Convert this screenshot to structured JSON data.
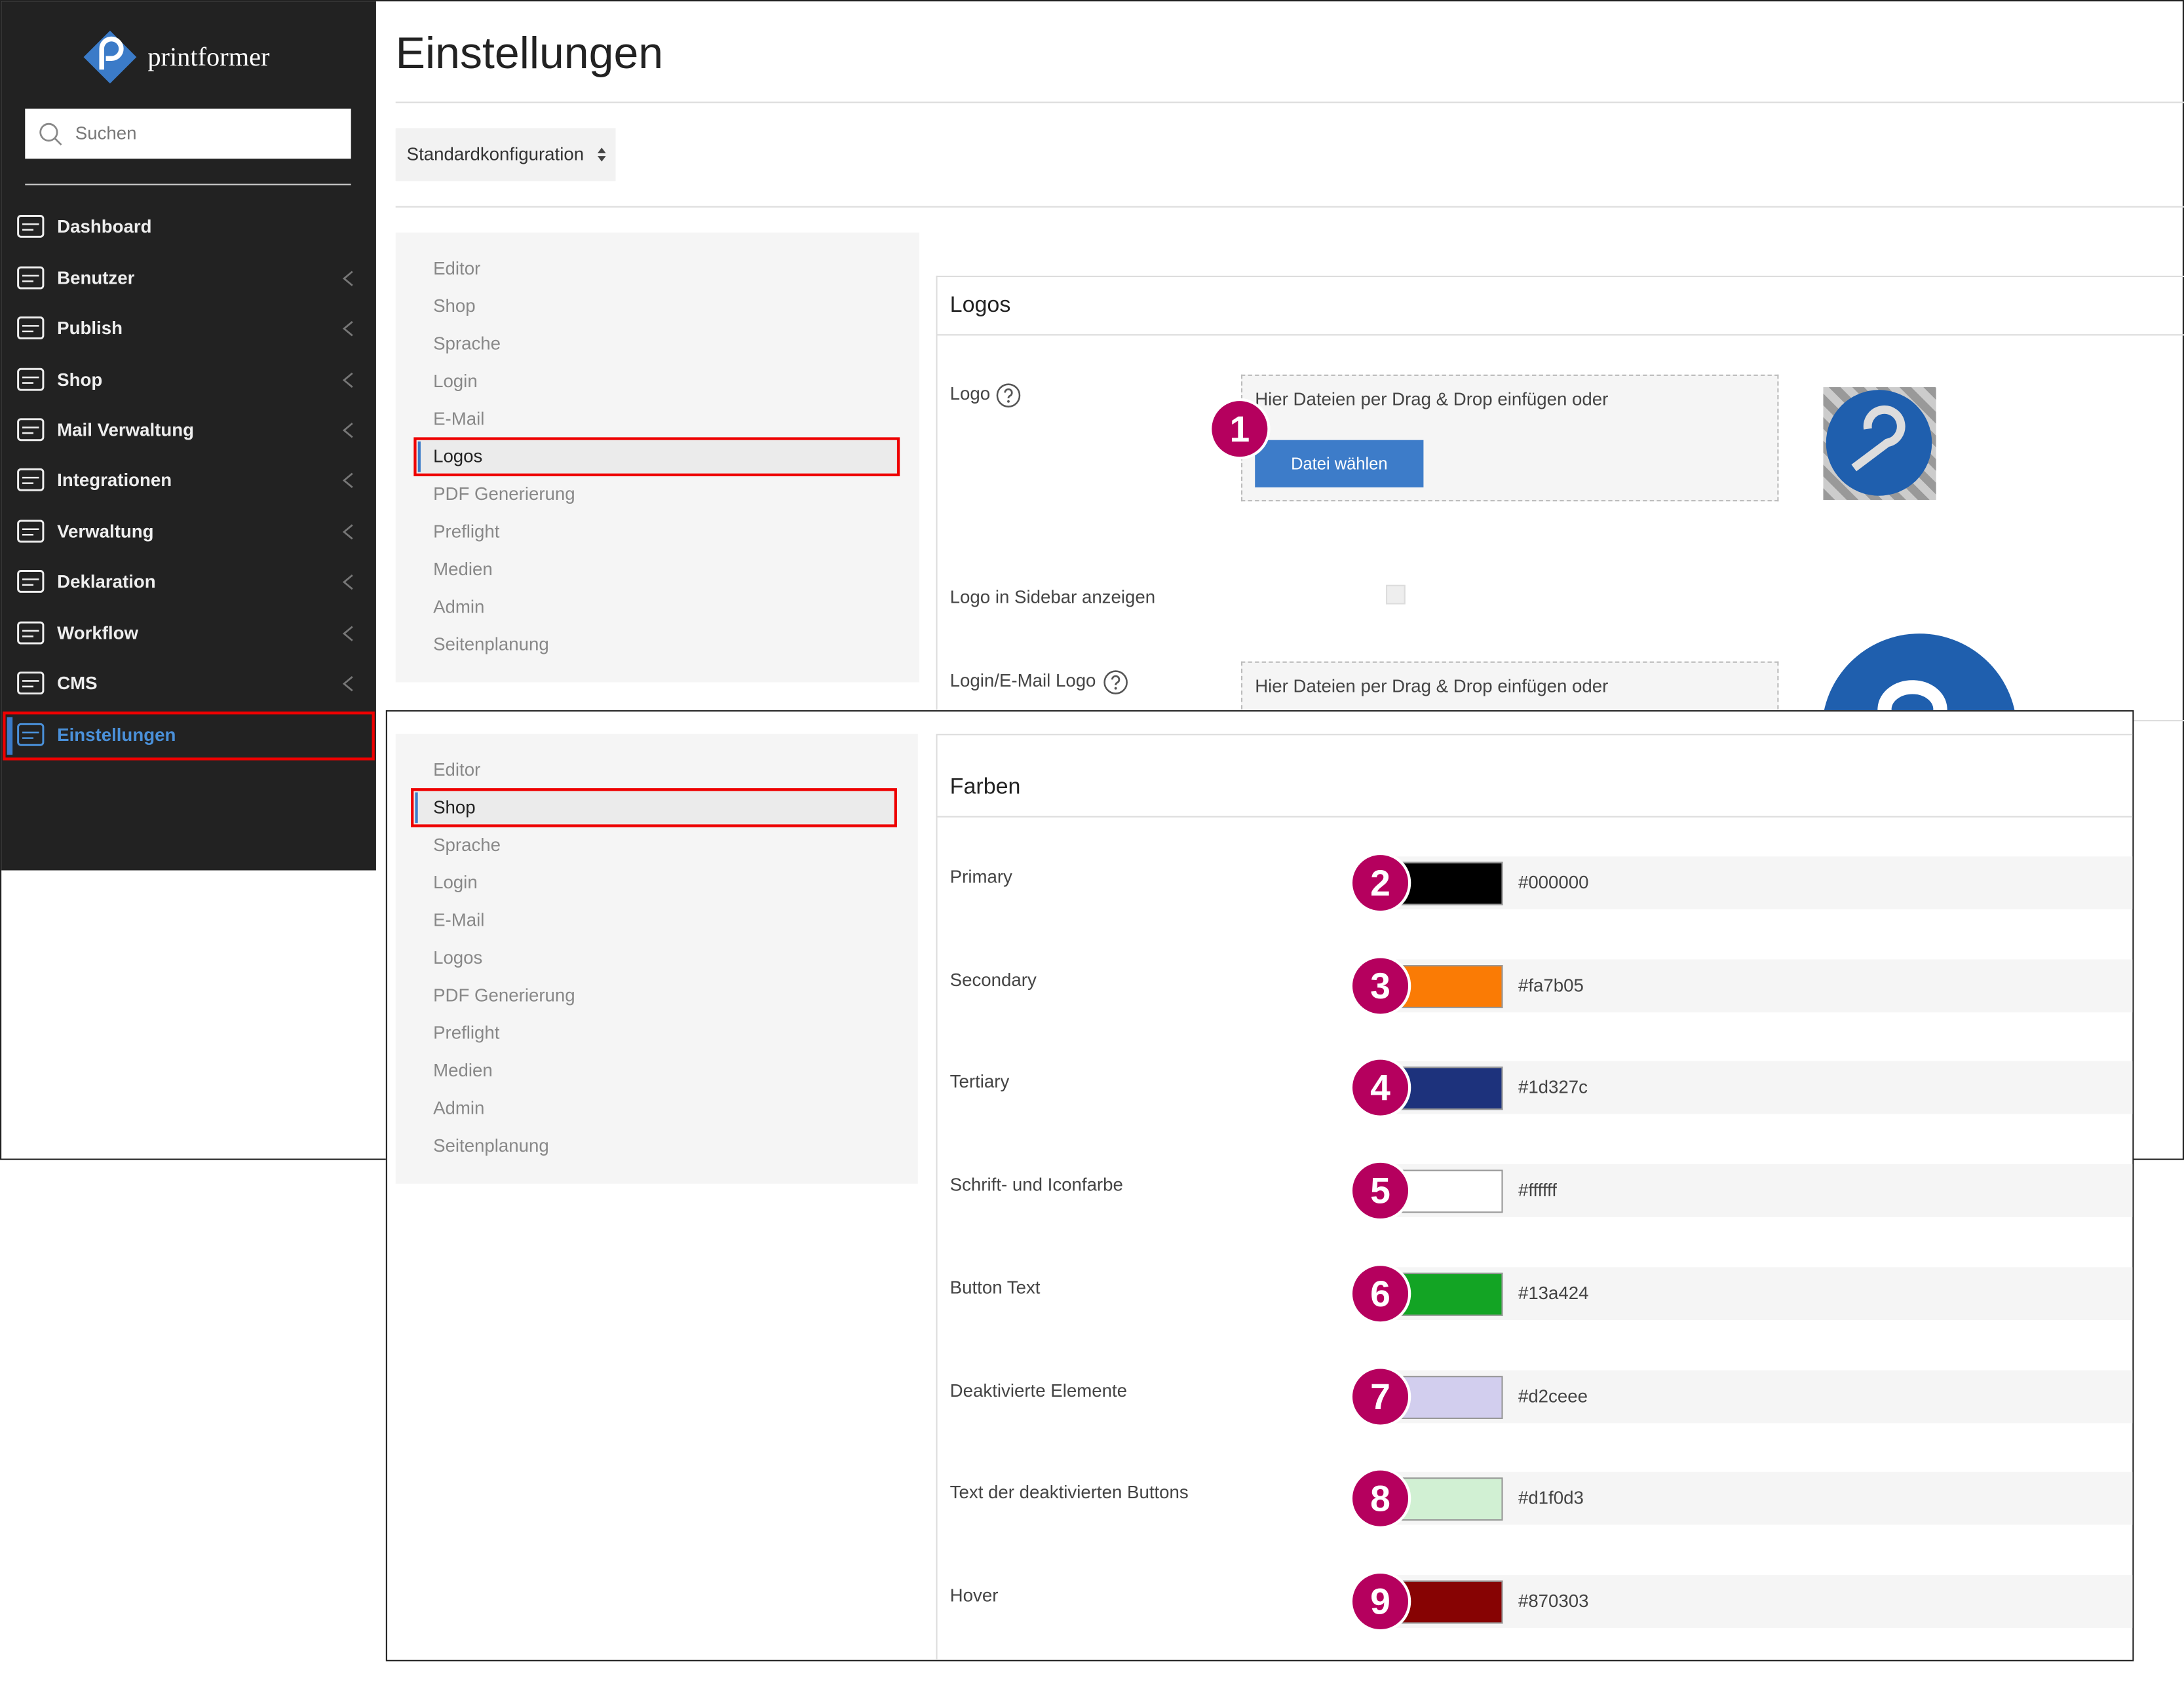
{
  "sidebar": {
    "brand": "printformer",
    "search_placeholder": "Suchen",
    "menu": [
      "Dashboard",
      "Benutzer",
      "Publish",
      "Shop",
      "Mail Verwaltung",
      "Integrationen",
      "Verwaltung",
      "Deklaration",
      "Workflow",
      "CMS",
      "Einstellungen"
    ],
    "active_index": 10
  },
  "header": {
    "title": "Einstellungen",
    "config_select": "Standardkonfiguration"
  },
  "settings_nav": [
    "Editor",
    "Shop",
    "Sprache",
    "Login",
    "E-Mail",
    "Logos",
    "PDF Generierung",
    "Preflight",
    "Medien",
    "Admin",
    "Seitenplanung"
  ],
  "top_view": {
    "selected_nav": 5,
    "section_title": "Logos",
    "logo_label": "Logo",
    "dropzone_text": "Hier Dateien per Drag & Drop einfügen oder",
    "button": "Datei wählen",
    "sidebar_logo_label": "Logo in Sidebar anzeigen",
    "mail_logo_label": "Login/E-Mail Logo"
  },
  "bottom_view": {
    "selected_nav": 1,
    "section_title": "Farben",
    "colors": [
      {
        "label": "Primary",
        "value": "#000000"
      },
      {
        "label": "Secondary",
        "value": "#fa7b05"
      },
      {
        "label": "Tertiary",
        "value": "#1d327c"
      },
      {
        "label": "Schrift- und Iconfarbe",
        "value": "#ffffff"
      },
      {
        "label": "Button Text",
        "value": "#13a424"
      },
      {
        "label": "Deaktivierte Elemente",
        "value": "#d2ceee"
      },
      {
        "label": "Text der deaktivierten Buttons",
        "value": "#d1f0d3"
      },
      {
        "label": "Hover",
        "value": "#870303"
      }
    ]
  },
  "callouts": [
    1,
    2,
    3,
    4,
    5,
    6,
    7,
    8,
    9
  ]
}
